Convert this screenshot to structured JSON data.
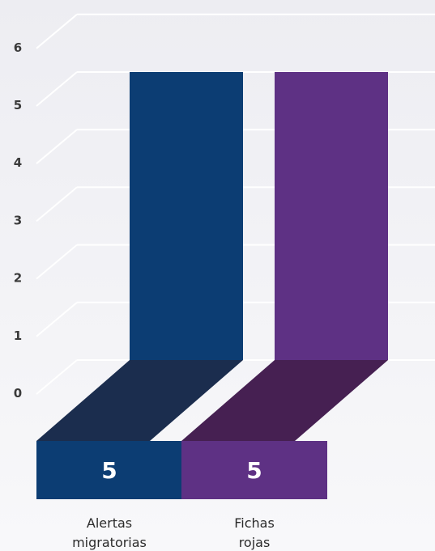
{
  "colors": {
    "bar1_front": "#0c3d73",
    "bar1_floor": "#1b2d4e",
    "bar2_front": "#5e3184",
    "bar2_floor": "#462052",
    "grid": "#ffffff"
  },
  "chart_data": {
    "type": "bar",
    "categories": [
      "Alertas migratorias",
      "Fichas rojas"
    ],
    "category_lines": [
      [
        "Alertas",
        "migratorias"
      ],
      [
        "Fichas",
        "rojas"
      ]
    ],
    "values": [
      5,
      5
    ],
    "value_labels": [
      "5",
      "5"
    ],
    "yticks": [
      "0",
      "1",
      "2",
      "3",
      "4",
      "5",
      "6"
    ],
    "ylim": [
      0,
      6
    ],
    "grid": true,
    "title": "",
    "xlabel": "",
    "ylabel": ""
  }
}
